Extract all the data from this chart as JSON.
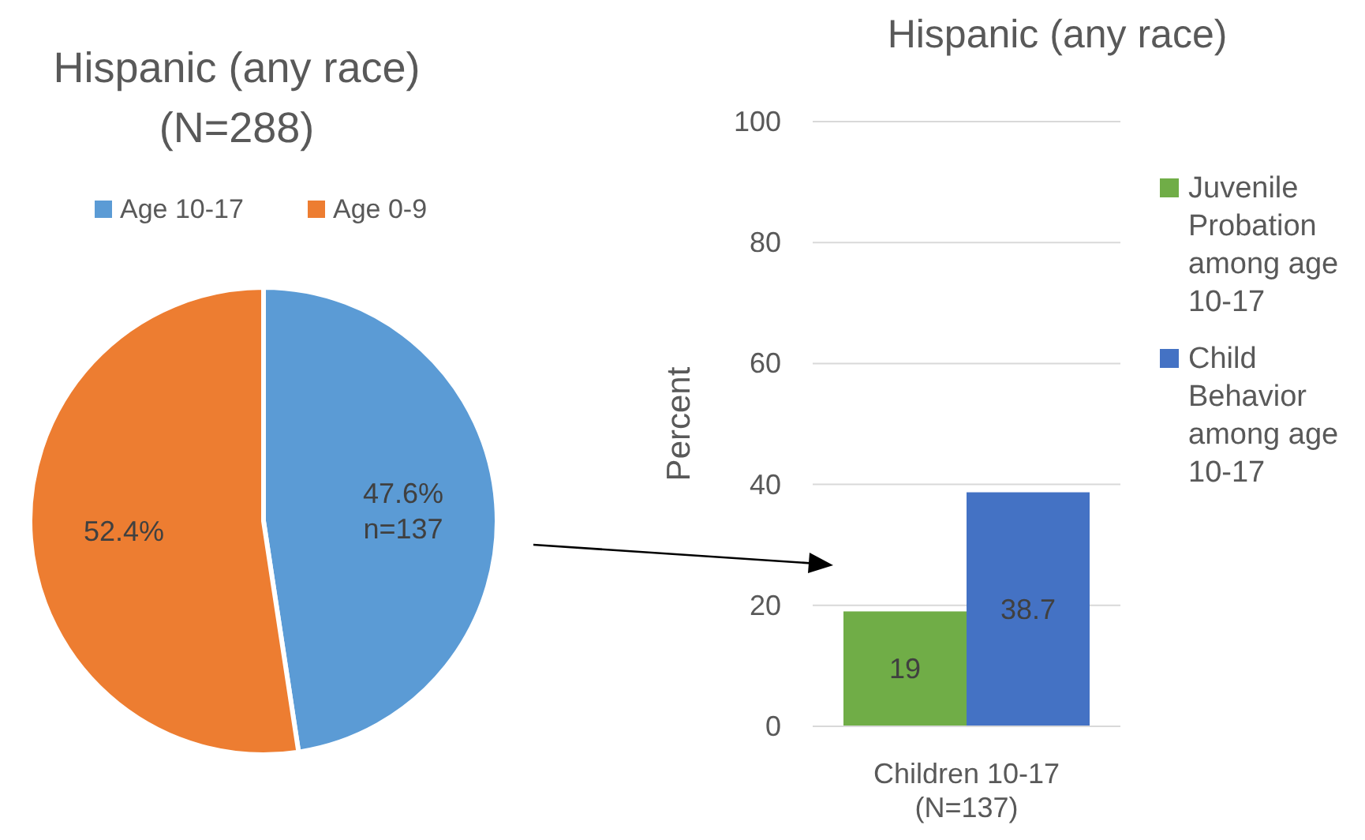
{
  "chart_data": [
    {
      "type": "pie",
      "title": "Hispanic (any race)",
      "subtitle": "(N=288)",
      "categories": [
        "Age 10-17",
        "Age 0-9"
      ],
      "values": [
        47.6,
        52.4
      ],
      "colors": [
        "#5b9bd5",
        "#ed7d31"
      ],
      "value_labels": [
        "47.6%\nn=137",
        "52.4%"
      ],
      "legend": "top"
    },
    {
      "type": "bar",
      "title": "Hispanic (any race)",
      "ylabel": "Percent",
      "categories": [
        "Children 10-17\n(N=137)"
      ],
      "series": [
        {
          "name": "Juvenile Probation among age 10-17",
          "color": "#70ad47",
          "values": [
            19
          ]
        },
        {
          "name": "Child Behavior among age 10-17",
          "color": "#4472c4",
          "values": [
            38.7
          ]
        }
      ],
      "ylim": [
        0,
        100
      ],
      "yticks": [
        0,
        20,
        40,
        60,
        80,
        100
      ],
      "grid": "y",
      "legend": "right",
      "data_labels": true
    }
  ]
}
